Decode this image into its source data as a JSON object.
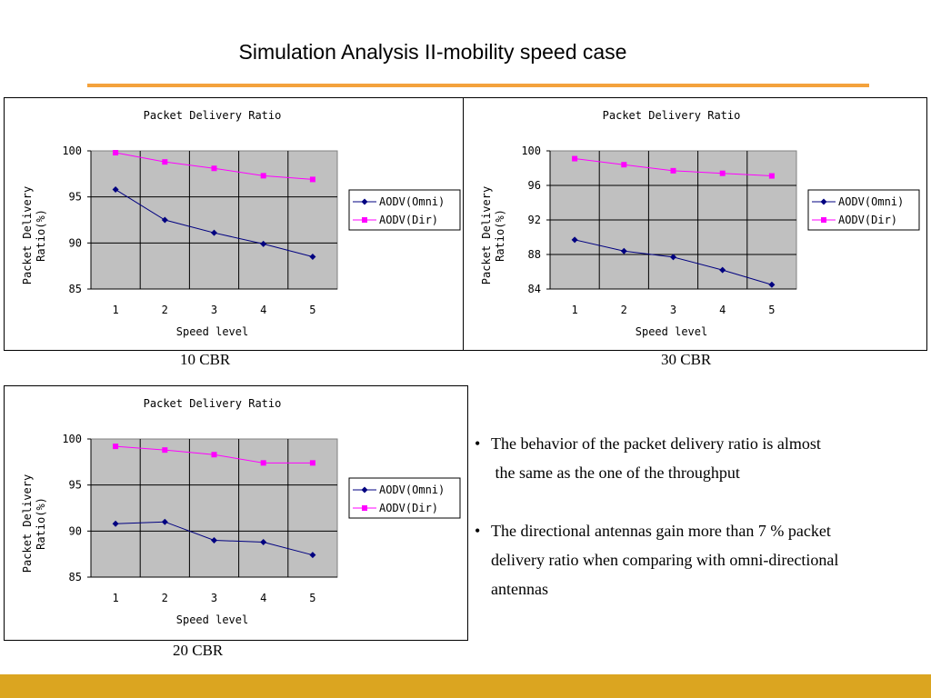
{
  "slide": {
    "title": "Simulation Analysis II-mobility speed case",
    "accent_color": "#f4a23c",
    "footer_color": "#dba520"
  },
  "bullets": [
    {
      "lines": [
        "The behavior of the packet delivery ratio is almost",
        " the same as the one of the throughput"
      ]
    },
    {
      "lines": [
        "The directional antennas gain more than 7 % packet",
        "delivery ratio when comparing with omni-directional",
        "antennas"
      ]
    }
  ],
  "chart_data": [
    {
      "type": "line",
      "caption": "10 CBR",
      "title": "Packet Delivery Ratio",
      "xlabel": "Speed level",
      "ylabel": "Packet Delivery Ratio(%)",
      "ylabel_lines": [
        "Packet Delivery",
        "Ratio(%)"
      ],
      "x": [
        1,
        2,
        3,
        4,
        5
      ],
      "ylim": [
        85,
        100
      ],
      "yticks": [
        85,
        90,
        95,
        100
      ],
      "grid": true,
      "legend_position": "right",
      "series": [
        {
          "name": "AODV(Omni)",
          "color": "#000080",
          "marker": "diamond",
          "values": [
            95.8,
            92.5,
            91.1,
            89.9,
            88.5
          ]
        },
        {
          "name": "AODV(Dir)",
          "color": "#ff00ff",
          "marker": "square",
          "values": [
            99.8,
            98.8,
            98.1,
            97.3,
            96.9
          ]
        }
      ]
    },
    {
      "type": "line",
      "caption": "30 CBR",
      "title": "Packet Delivery Ratio",
      "xlabel": "Speed level",
      "ylabel": "Packet Delivery Ratio(%)",
      "ylabel_lines": [
        "Packet Delivery",
        "Ratio(%)"
      ],
      "x": [
        1,
        2,
        3,
        4,
        5
      ],
      "ylim": [
        84,
        100
      ],
      "yticks": [
        84,
        88,
        92,
        96,
        100
      ],
      "grid": true,
      "legend_position": "right",
      "series": [
        {
          "name": "AODV(Omni)",
          "color": "#000080",
          "marker": "diamond",
          "values": [
            89.7,
            88.4,
            87.7,
            86.2,
            84.5
          ]
        },
        {
          "name": "AODV(Dir)",
          "color": "#ff00ff",
          "marker": "square",
          "values": [
            99.1,
            98.4,
            97.7,
            97.4,
            97.1
          ]
        }
      ]
    },
    {
      "type": "line",
      "caption": "20 CBR",
      "title": "Packet Delivery Ratio",
      "xlabel": "Speed level",
      "ylabel": "Packet Delivery Ratio(%)",
      "ylabel_lines": [
        "Packet Delivery",
        "Ratio(%)"
      ],
      "x": [
        1,
        2,
        3,
        4,
        5
      ],
      "ylim": [
        85,
        100
      ],
      "yticks": [
        85,
        90,
        95,
        100
      ],
      "grid": true,
      "legend_position": "right",
      "series": [
        {
          "name": "AODV(Omni)",
          "color": "#000080",
          "marker": "diamond",
          "values": [
            90.8,
            91.0,
            89.0,
            88.8,
            87.4
          ]
        },
        {
          "name": "AODV(Dir)",
          "color": "#ff00ff",
          "marker": "square",
          "values": [
            99.2,
            98.8,
            98.3,
            97.4,
            97.4
          ]
        }
      ]
    }
  ]
}
